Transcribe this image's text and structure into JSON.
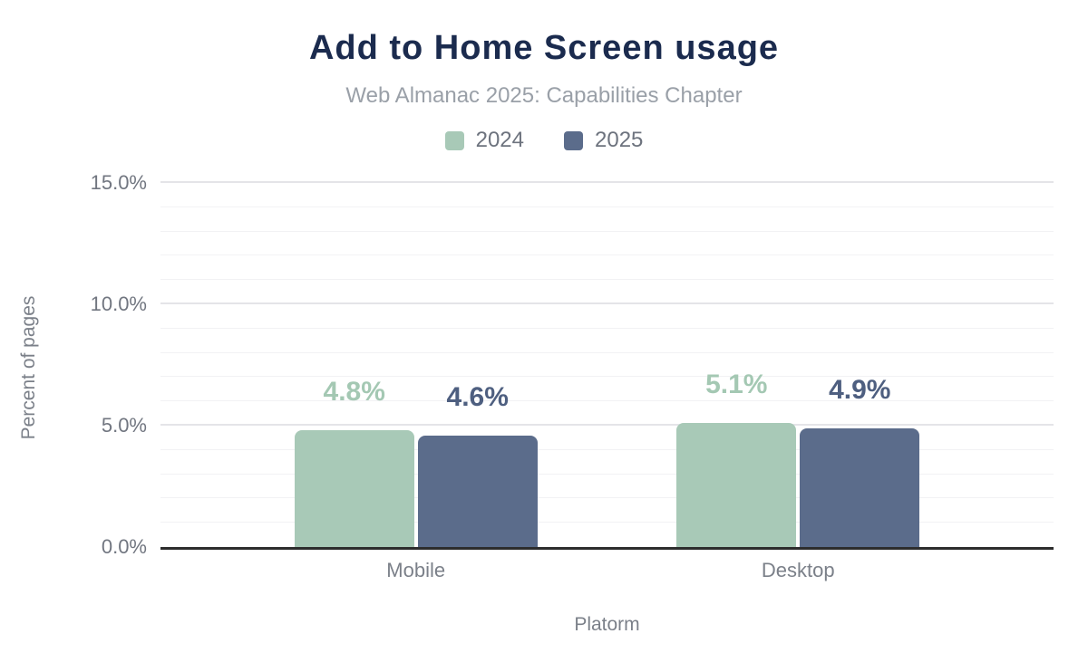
{
  "header": {
    "title": "Add to Home Screen usage",
    "subtitle": "Web Almanac 2025: Capabilities Chapter"
  },
  "chart_data": {
    "type": "bar",
    "title": "Add to Home Screen usage",
    "subtitle": "Web Almanac 2025: Capabilities Chapter",
    "xlabel": "Platorm",
    "ylabel": "Percent of pages",
    "categories": [
      "Mobile",
      "Desktop"
    ],
    "series": [
      {
        "name": "2024",
        "color": "#a8c9b7",
        "label_color": "#a4c8b3",
        "values": [
          4.8,
          5.1
        ],
        "labels": [
          "4.8%",
          "5.1%"
        ]
      },
      {
        "name": "2025",
        "color": "#5b6c8b",
        "label_color": "#4e5f80",
        "values": [
          4.6,
          4.9
        ],
        "labels": [
          "4.6%",
          "4.9%"
        ]
      }
    ],
    "ylim": [
      0,
      15
    ],
    "yticks": [
      {
        "label": "0.0%",
        "value": 0
      },
      {
        "label": "5.0%",
        "value": 5
      },
      {
        "label": "10.0%",
        "value": 10
      },
      {
        "label": "15.0%",
        "value": 15
      }
    ],
    "grid": {
      "minor_step": 1,
      "major_step": 5
    },
    "legend_position": "top",
    "colors": {
      "title": "#1b2b4e",
      "subtitle": "#9aa0a8",
      "legend_text": "#6d737e",
      "tick_text": "#717680",
      "axis_text": "#7b8089",
      "axis_line": "#2d2d2d"
    },
    "layout": {
      "group_centers_pct": [
        28.6,
        71.4
      ]
    }
  }
}
